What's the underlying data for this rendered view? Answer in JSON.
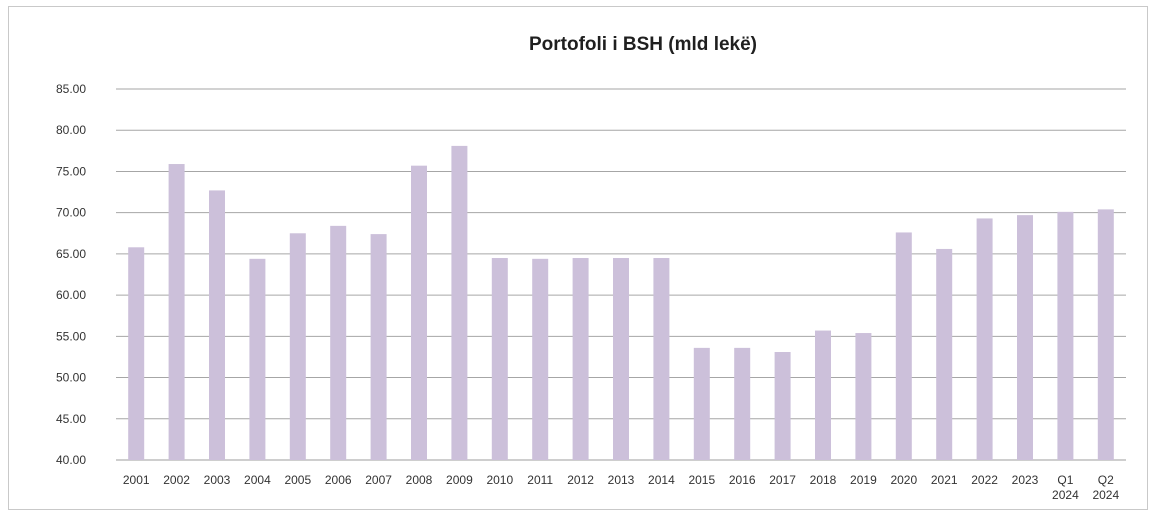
{
  "chart_data": {
    "type": "bar",
    "title": "Portofoli i BSH (mld lekë)",
    "xlabel": "",
    "ylabel": "",
    "ylim": [
      40,
      85
    ],
    "ytick_step": 5,
    "yticks": [
      "40.00",
      "45.00",
      "50.00",
      "55.00",
      "60.00",
      "65.00",
      "70.00",
      "75.00",
      "80.00",
      "85.00"
    ],
    "grid": true,
    "legend": "none",
    "bar_color": "#ccc0da",
    "categories": [
      [
        "2001"
      ],
      [
        "2002"
      ],
      [
        "2003"
      ],
      [
        "2004"
      ],
      [
        "2005"
      ],
      [
        "2006"
      ],
      [
        "2007"
      ],
      [
        "2008"
      ],
      [
        "2009"
      ],
      [
        "2010"
      ],
      [
        "2011"
      ],
      [
        "2012"
      ],
      [
        "2013"
      ],
      [
        "2014"
      ],
      [
        "2015"
      ],
      [
        "2016"
      ],
      [
        "2017"
      ],
      [
        "2018"
      ],
      [
        "2019"
      ],
      [
        "2020"
      ],
      [
        "2021"
      ],
      [
        "2022"
      ],
      [
        "2023"
      ],
      [
        "Q1",
        "2024"
      ],
      [
        "Q2",
        "2024"
      ]
    ],
    "values": [
      65.8,
      75.9,
      72.7,
      64.4,
      67.5,
      68.4,
      67.4,
      75.7,
      78.1,
      64.5,
      64.4,
      64.5,
      64.5,
      64.5,
      53.6,
      53.6,
      53.1,
      55.7,
      55.4,
      67.6,
      65.6,
      69.3,
      69.7,
      70.1,
      70.4
    ]
  }
}
